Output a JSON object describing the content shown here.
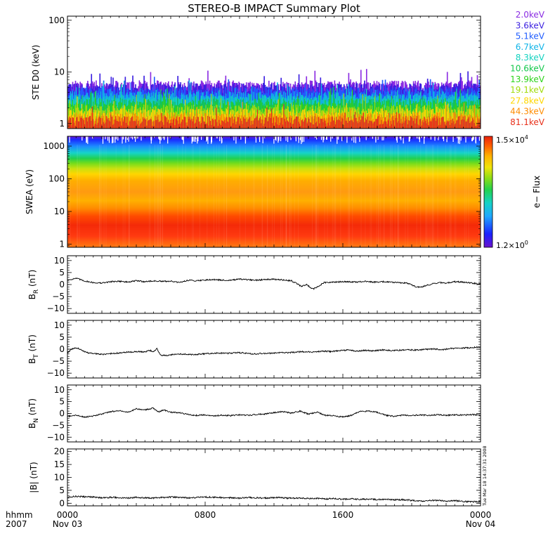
{
  "chart_data": {
    "title": "STEREO-B IMPACT Summary Plot",
    "x_axis": {
      "prefix_labels": [
        "hhmm",
        "2007"
      ],
      "ticks": [
        {
          "value": 0,
          "label": "0000",
          "date": "Nov 03"
        },
        {
          "value": 8,
          "label": "0800",
          "date": ""
        },
        {
          "value": 16,
          "label": "1600",
          "date": ""
        },
        {
          "value": 24,
          "label": "0000",
          "date": "Nov 04"
        }
      ],
      "range_hours": [
        0,
        24
      ]
    },
    "timestamp": "Tue Mar 18 14:37:31 2008",
    "panels": [
      {
        "id": "ste",
        "type": "bar",
        "ylabel": "STE D0 (keV)",
        "scale": "log",
        "ylim": [
          0.8,
          120
        ],
        "ticks": [
          {
            "value": 1,
            "label": "1"
          },
          {
            "value": 10,
            "label": "10"
          },
          {
            "value": 100,
            "label": "100"
          }
        ],
        "legend_placement": "right",
        "series": [
          {
            "name": "2.0keV",
            "color": "#8a2be2",
            "typical_level": 5.6
          },
          {
            "name": "3.6keV",
            "color": "#3a1ee0",
            "typical_level": 5.0
          },
          {
            "name": "5.1keV",
            "color": "#1f5cff",
            "typical_level": 4.2
          },
          {
            "name": "6.7keV",
            "color": "#0fb4e8",
            "typical_level": 3.5
          },
          {
            "name": "8.3keV",
            "color": "#11d2bf",
            "typical_level": 3.0
          },
          {
            "name": "10.6keV",
            "color": "#12c84a",
            "typical_level": 2.5
          },
          {
            "name": "13.9keV",
            "color": "#2cd41a",
            "typical_level": 2.2
          },
          {
            "name": "19.1keV",
            "color": "#a2dc0b",
            "typical_level": 1.9
          },
          {
            "name": "27.8keV",
            "color": "#ffd700",
            "typical_level": 1.6
          },
          {
            "name": "44.3keV",
            "color": "#ff8c00",
            "typical_level": 1.35
          },
          {
            "name": "81.1keV",
            "color": "#e8301a",
            "typical_level": 1.15
          }
        ]
      },
      {
        "id": "swea",
        "type": "heatmap",
        "ylabel": "SWEA (eV)",
        "scale": "log",
        "ylim": [
          0.8,
          2000
        ],
        "ticks": [
          {
            "value": 1,
            "label": "1"
          },
          {
            "value": 10,
            "label": "10"
          },
          {
            "value": 100,
            "label": "100"
          },
          {
            "value": 1000,
            "label": "1000"
          }
        ],
        "colorbar": {
          "label": "e− Flux",
          "max_label": "1.5×10",
          "max_exp": "4",
          "min_label": "1.2×10",
          "min_exp": "0",
          "range": [
            1.2,
            15000
          ]
        }
      },
      {
        "id": "br",
        "type": "line",
        "ylabel": "B",
        "ylabel_sub": "R",
        "ylabel_unit": "(nT)",
        "ylim": [
          -12,
          12
        ],
        "ticks": [
          {
            "value": 10,
            "label": "10"
          },
          {
            "value": 5,
            "label": "5"
          },
          {
            "value": 0,
            "label": "0"
          },
          {
            "value": -5,
            "label": "−5"
          },
          {
            "value": -10,
            "label": "−10"
          }
        ],
        "points": [
          [
            0,
            1.8
          ],
          [
            0.5,
            2.6
          ],
          [
            1,
            1.5
          ],
          [
            1.5,
            0.8
          ],
          [
            2,
            0.6
          ],
          [
            2.5,
            1.2
          ],
          [
            3,
            1.4
          ],
          [
            3.5,
            1.0
          ],
          [
            4,
            1.6
          ],
          [
            4.5,
            1.2
          ],
          [
            5,
            1.5
          ],
          [
            5.5,
            1.3
          ],
          [
            6,
            1.4
          ],
          [
            6.5,
            0.8
          ],
          [
            7,
            1.8
          ],
          [
            7.5,
            1.6
          ],
          [
            8,
            1.9
          ],
          [
            8.5,
            2.1
          ],
          [
            9,
            1.8
          ],
          [
            9.5,
            1.8
          ],
          [
            10,
            2.2
          ],
          [
            10.5,
            2.0
          ],
          [
            11,
            1.8
          ],
          [
            11.5,
            2.2
          ],
          [
            12,
            2.2
          ],
          [
            12.5,
            1.9
          ],
          [
            13,
            1.6
          ],
          [
            13.3,
            0.5
          ],
          [
            13.6,
            -0.8
          ],
          [
            13.9,
            0.0
          ],
          [
            14.1,
            -1.2
          ],
          [
            14.3,
            -1.8
          ],
          [
            14.6,
            -0.6
          ],
          [
            14.9,
            0.8
          ],
          [
            15.3,
            0.9
          ],
          [
            15.8,
            1.1
          ],
          [
            16.3,
            1.2
          ],
          [
            16.8,
            1.0
          ],
          [
            17.3,
            1.3
          ],
          [
            17.8,
            1.0
          ],
          [
            18.3,
            1.2
          ],
          [
            18.8,
            1.0
          ],
          [
            19.3,
            0.8
          ],
          [
            19.8,
            0.5
          ],
          [
            20.2,
            -0.8
          ],
          [
            20.5,
            -1.2
          ],
          [
            20.8,
            -0.5
          ],
          [
            21.2,
            0.3
          ],
          [
            21.6,
            0.8
          ],
          [
            22,
            0.6
          ],
          [
            22.5,
            1.2
          ],
          [
            23,
            1.0
          ],
          [
            23.5,
            0.6
          ],
          [
            24,
            0.3
          ]
        ]
      },
      {
        "id": "bt",
        "type": "line",
        "ylabel": "B",
        "ylabel_sub": "T",
        "ylabel_unit": "(nT)",
        "ylim": [
          -12,
          12
        ],
        "ticks": [
          {
            "value": 10,
            "label": "10"
          },
          {
            "value": 5,
            "label": "5"
          },
          {
            "value": 0,
            "label": "0"
          },
          {
            "value": -5,
            "label": "−5"
          },
          {
            "value": -10,
            "label": "−10"
          }
        ],
        "points": [
          [
            0,
            -1.5
          ],
          [
            0.3,
            0.2
          ],
          [
            0.6,
            0.5
          ],
          [
            0.9,
            -0.8
          ],
          [
            1.2,
            -1.5
          ],
          [
            1.6,
            -1.8
          ],
          [
            2,
            -2.2
          ],
          [
            2.5,
            -1.8
          ],
          [
            3,
            -1.6
          ],
          [
            3.5,
            -1.2
          ],
          [
            4,
            -1.0
          ],
          [
            4.5,
            -1.2
          ],
          [
            4.8,
            -0.5
          ],
          [
            5,
            -1.0
          ],
          [
            5.2,
            0.2
          ],
          [
            5.4,
            -2.5
          ],
          [
            5.8,
            -2.6
          ],
          [
            6.2,
            -2.2
          ],
          [
            6.8,
            -2.0
          ],
          [
            7.3,
            -2.3
          ],
          [
            7.8,
            -2.0
          ],
          [
            8.3,
            -1.8
          ],
          [
            8.8,
            -1.6
          ],
          [
            9.3,
            -1.8
          ],
          [
            9.8,
            -1.4
          ],
          [
            10.3,
            -1.6
          ],
          [
            10.8,
            -2.0
          ],
          [
            11.3,
            -1.8
          ],
          [
            11.8,
            -1.7
          ],
          [
            12.3,
            -1.4
          ],
          [
            12.8,
            -1.5
          ],
          [
            13.3,
            -1.2
          ],
          [
            13.8,
            -1.0
          ],
          [
            14.3,
            -1.3
          ],
          [
            14.8,
            -0.8
          ],
          [
            15.3,
            -1.0
          ],
          [
            15.8,
            -0.6
          ],
          [
            16.3,
            -0.4
          ],
          [
            16.8,
            -0.8
          ],
          [
            17.3,
            -0.5
          ],
          [
            17.8,
            -0.7
          ],
          [
            18.3,
            -0.3
          ],
          [
            18.8,
            -0.6
          ],
          [
            19.3,
            -0.4
          ],
          [
            19.8,
            -0.2
          ],
          [
            20.3,
            -0.4
          ],
          [
            20.8,
            -0.1
          ],
          [
            21.3,
            0.1
          ],
          [
            21.8,
            -0.2
          ],
          [
            22.3,
            0.3
          ],
          [
            22.8,
            0.4
          ],
          [
            23.3,
            0.6
          ],
          [
            23.7,
            0.8
          ],
          [
            24,
            0.9
          ]
        ]
      },
      {
        "id": "bn",
        "type": "line",
        "ylabel": "B",
        "ylabel_sub": "N",
        "ylabel_unit": "(nT)",
        "ylim": [
          -12,
          12
        ],
        "ticks": [
          {
            "value": 10,
            "label": "10"
          },
          {
            "value": 5,
            "label": "5"
          },
          {
            "value": 0,
            "label": "0"
          },
          {
            "value": -5,
            "label": "−5"
          },
          {
            "value": -10,
            "label": "−10"
          }
        ],
        "points": [
          [
            0,
            -1.2
          ],
          [
            0.5,
            -0.8
          ],
          [
            1,
            -1.5
          ],
          [
            1.5,
            -1.0
          ],
          [
            2,
            -0.3
          ],
          [
            2.5,
            0.8
          ],
          [
            3,
            1.2
          ],
          [
            3.5,
            0.5
          ],
          [
            4,
            2.0
          ],
          [
            4.5,
            1.5
          ],
          [
            5,
            2.2
          ],
          [
            5.3,
            0.6
          ],
          [
            5.6,
            1.5
          ],
          [
            6,
            0.5
          ],
          [
            6.5,
            0.3
          ],
          [
            7,
            -0.4
          ],
          [
            7.5,
            -0.8
          ],
          [
            8,
            -0.6
          ],
          [
            8.5,
            -1.0
          ],
          [
            9,
            -0.7
          ],
          [
            9.5,
            -0.9
          ],
          [
            10,
            -0.6
          ],
          [
            10.5,
            -0.8
          ],
          [
            11,
            -0.4
          ],
          [
            11.5,
            -0.2
          ],
          [
            12,
            0.3
          ],
          [
            12.5,
            0.8
          ],
          [
            13,
            0.2
          ],
          [
            13.5,
            1.0
          ],
          [
            14,
            -0.3
          ],
          [
            14.5,
            0.6
          ],
          [
            15,
            -0.8
          ],
          [
            15.5,
            -1.0
          ],
          [
            16,
            -1.5
          ],
          [
            16.5,
            -0.8
          ],
          [
            17,
            0.8
          ],
          [
            17.5,
            1.0
          ],
          [
            18,
            0.5
          ],
          [
            18.5,
            -0.8
          ],
          [
            19,
            -1.2
          ],
          [
            19.5,
            -0.7
          ],
          [
            20,
            -0.9
          ],
          [
            20.5,
            -0.6
          ],
          [
            21,
            -0.8
          ],
          [
            21.5,
            -0.5
          ],
          [
            22,
            -0.8
          ],
          [
            22.5,
            -0.6
          ],
          [
            23,
            -0.7
          ],
          [
            23.5,
            -0.5
          ],
          [
            24,
            -0.6
          ]
        ]
      },
      {
        "id": "bmag",
        "type": "line",
        "ylabel": "|B| (nT)",
        "ylim": [
          -1,
          21
        ],
        "ticks": [
          {
            "value": 20,
            "label": "20"
          },
          {
            "value": 15,
            "label": "15"
          },
          {
            "value": 10,
            "label": "10"
          },
          {
            "value": 5,
            "label": "5"
          },
          {
            "value": 0,
            "label": "0"
          }
        ],
        "points": [
          [
            0,
            2.4
          ],
          [
            0.5,
            2.7
          ],
          [
            1,
            2.5
          ],
          [
            1.5,
            2.4
          ],
          [
            2,
            2.1
          ],
          [
            2.5,
            2.3
          ],
          [
            3,
            2.2
          ],
          [
            3.5,
            2.0
          ],
          [
            4,
            2.3
          ],
          [
            4.5,
            2.1
          ],
          [
            5,
            2.0
          ],
          [
            5.5,
            2.2
          ],
          [
            6,
            2.4
          ],
          [
            6.5,
            2.3
          ],
          [
            7,
            2.1
          ],
          [
            7.5,
            2.2
          ],
          [
            8,
            2.4
          ],
          [
            8.5,
            2.3
          ],
          [
            9,
            2.2
          ],
          [
            9.5,
            2.1
          ],
          [
            10,
            2.0
          ],
          [
            10.5,
            2.2
          ],
          [
            11,
            2.1
          ],
          [
            11.5,
            2.0
          ],
          [
            12,
            2.2
          ],
          [
            12.5,
            2.1
          ],
          [
            13,
            1.9
          ],
          [
            13.5,
            2.0
          ],
          [
            14,
            1.8
          ],
          [
            14.5,
            1.9
          ],
          [
            15,
            1.7
          ],
          [
            15.5,
            1.8
          ],
          [
            16,
            1.6
          ],
          [
            16.5,
            1.7
          ],
          [
            17,
            1.5
          ],
          [
            17.5,
            1.6
          ],
          [
            18,
            1.4
          ],
          [
            18.5,
            1.5
          ],
          [
            19,
            1.3
          ],
          [
            19.5,
            1.4
          ],
          [
            20,
            1.1
          ],
          [
            20.5,
            0.8
          ],
          [
            21,
            1.0
          ],
          [
            21.5,
            1.2
          ],
          [
            22,
            0.9
          ],
          [
            22.5,
            1.0
          ],
          [
            23,
            0.7
          ],
          [
            23.5,
            0.6
          ],
          [
            24,
            0.6
          ]
        ]
      }
    ]
  }
}
